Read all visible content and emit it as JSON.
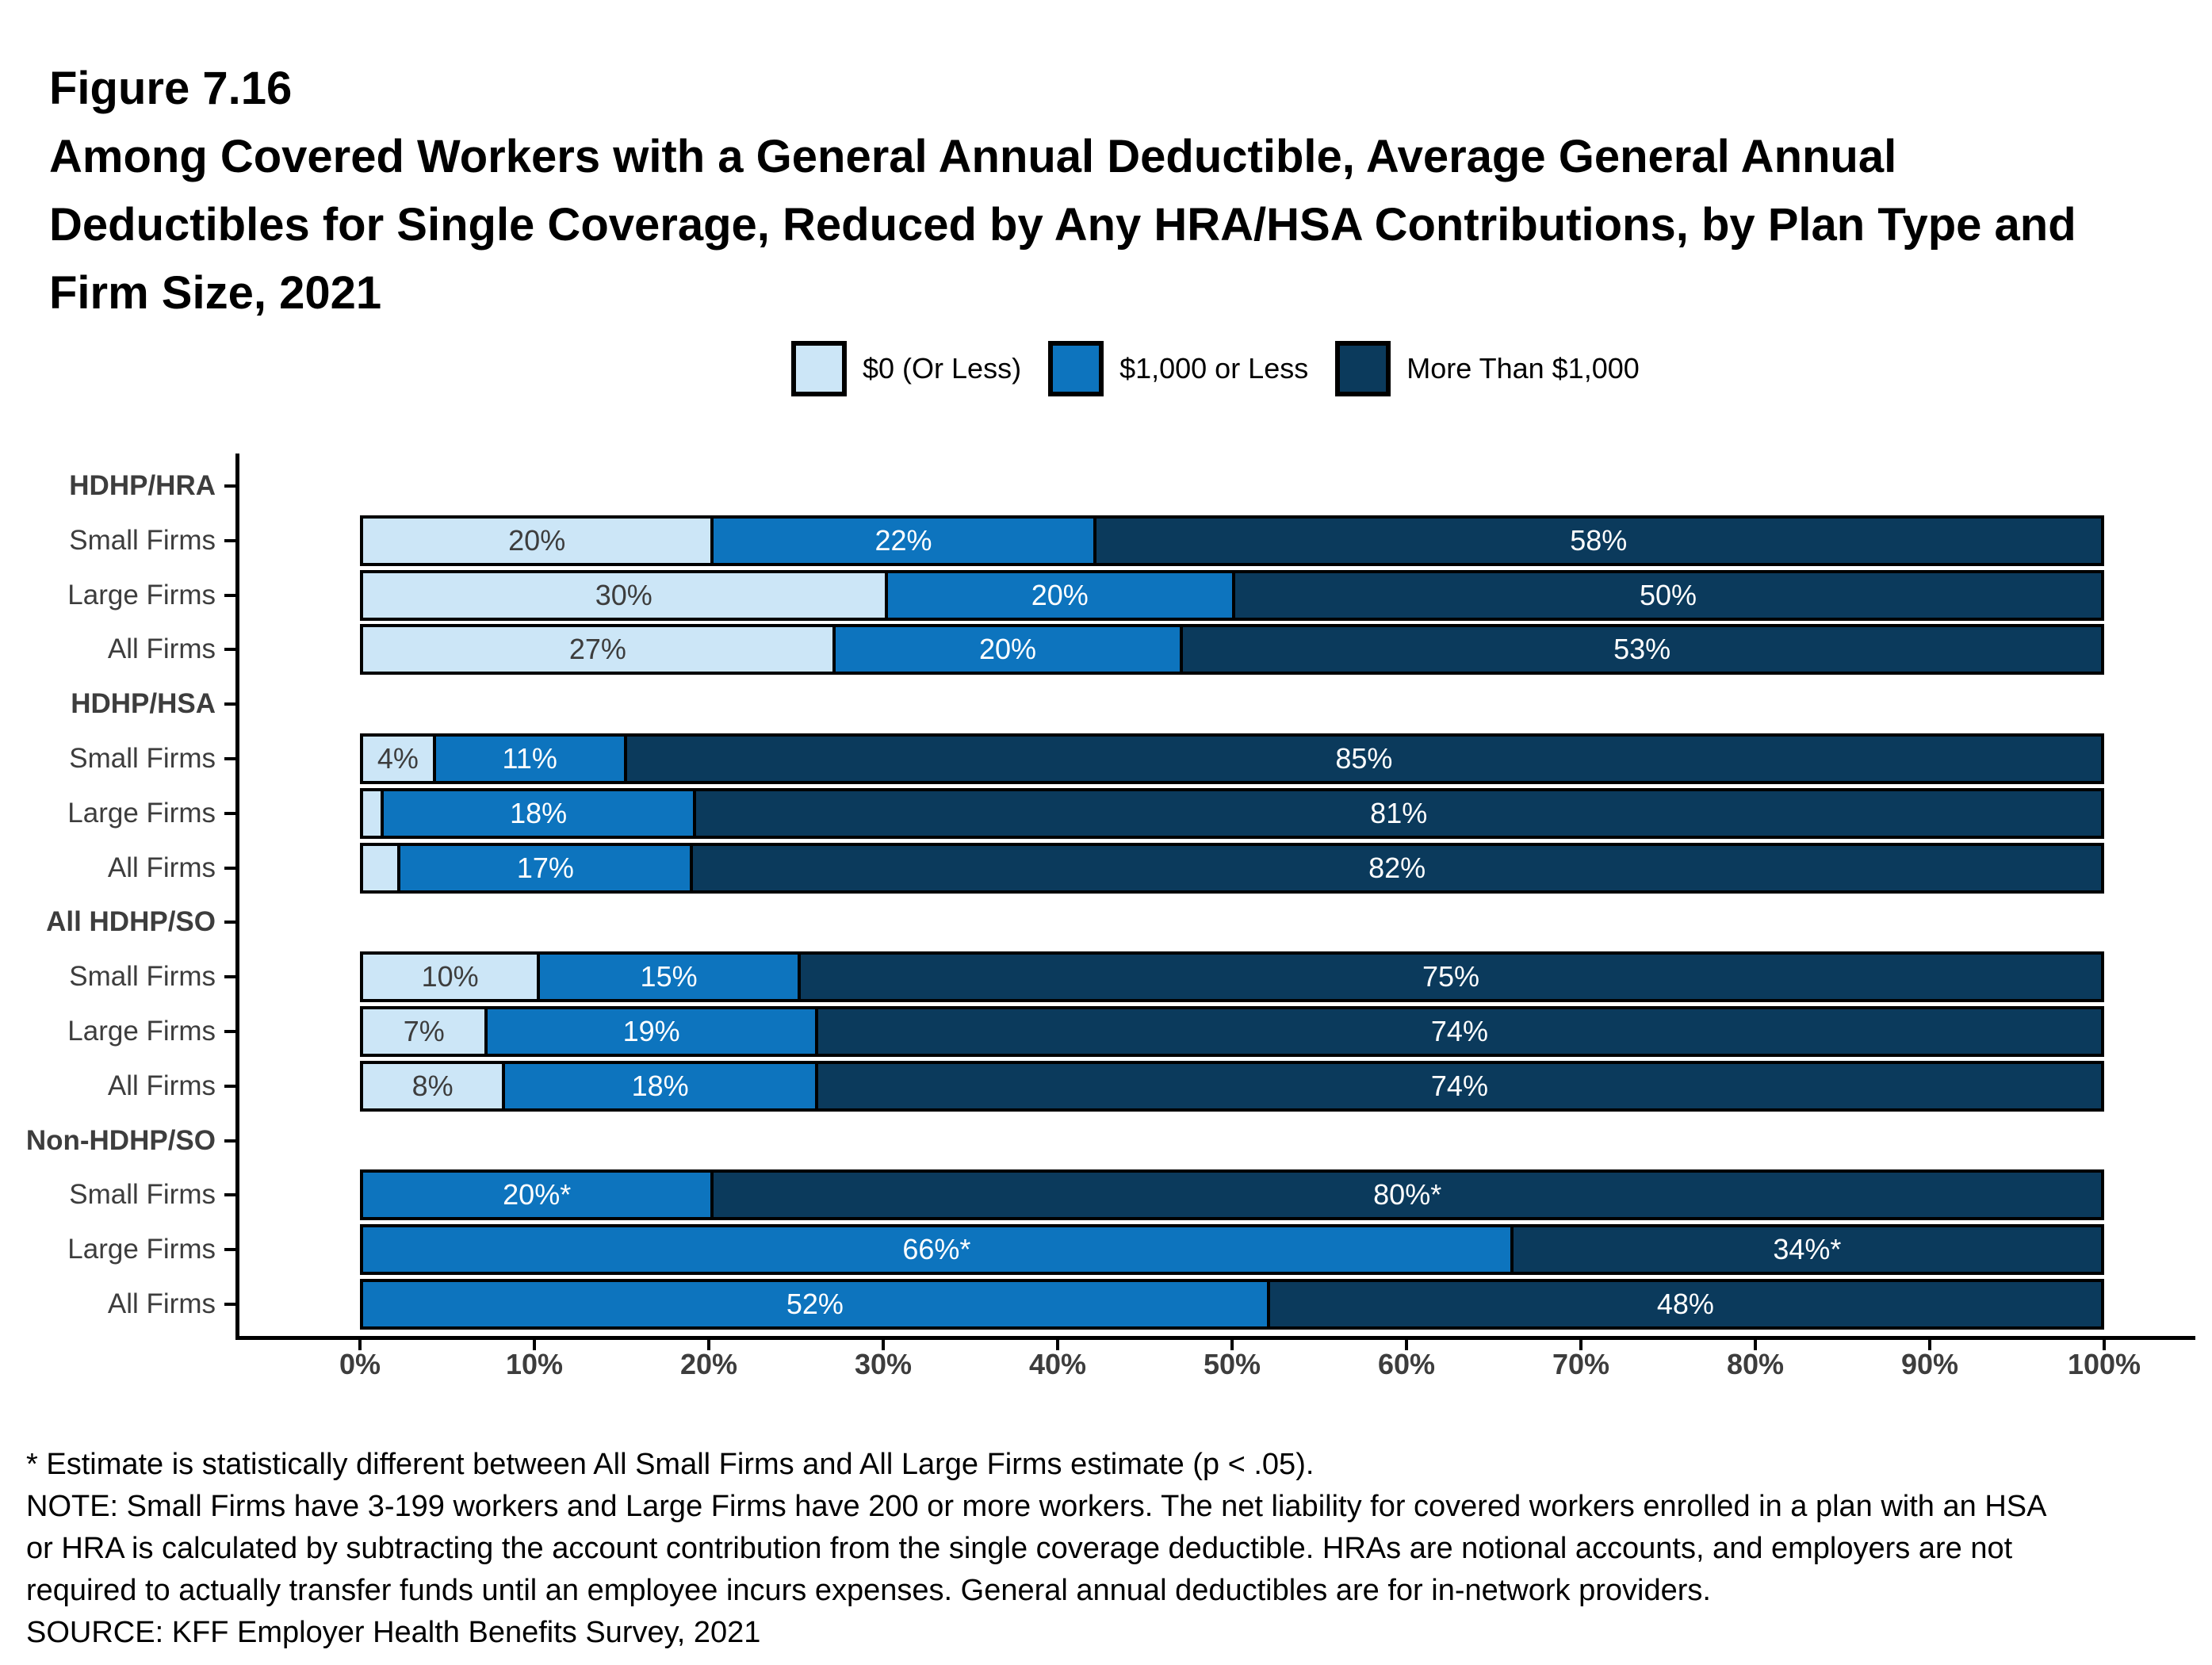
{
  "title": {
    "lines": [
      "Figure 7.16",
      "Among Covered Workers with a General Annual Deductible, Average General Annual",
      "Deductibles for Single Coverage, Reduced by Any HRA/HSA Contributions, by Plan Type and",
      "Firm Size, 2021"
    ]
  },
  "chart_data": {
    "type": "bar",
    "subtype": "horizontal-stacked",
    "series": [
      {
        "name": "$0 (Or Less)",
        "color": "#cce6f7",
        "label_color": "#3d3d3d"
      },
      {
        "name": "$1,000 or Less",
        "color": "#0d74be",
        "label_color": "#ffffff"
      },
      {
        "name": "More Than $1,000",
        "color": "#0b3a5c",
        "label_color": "#ffffff"
      }
    ],
    "xlabel": "",
    "ylabel": "",
    "x_axis": {
      "ticks": [
        "0%",
        "10%",
        "20%",
        "30%",
        "40%",
        "50%",
        "60%",
        "70%",
        "80%",
        "90%",
        "100%"
      ],
      "range": [
        0,
        100
      ]
    },
    "groups": [
      {
        "label": "HDHP/HRA",
        "rows": [
          {
            "label": "Small Firms",
            "segments": [
              {
                "s": 0,
                "v": 20,
                "t": "20%"
              },
              {
                "s": 1,
                "v": 22,
                "t": "22%"
              },
              {
                "s": 2,
                "v": 58,
                "t": "58%"
              }
            ]
          },
          {
            "label": "Large Firms",
            "segments": [
              {
                "s": 0,
                "v": 30,
                "t": "30%"
              },
              {
                "s": 1,
                "v": 20,
                "t": "20%"
              },
              {
                "s": 2,
                "v": 50,
                "t": "50%"
              }
            ]
          },
          {
            "label": "All Firms",
            "segments": [
              {
                "s": 0,
                "v": 27,
                "t": "27%"
              },
              {
                "s": 1,
                "v": 20,
                "t": "20%"
              },
              {
                "s": 2,
                "v": 53,
                "t": "53%"
              }
            ]
          }
        ]
      },
      {
        "label": "HDHP/HSA",
        "rows": [
          {
            "label": "Small Firms",
            "segments": [
              {
                "s": 0,
                "v": 4,
                "t": "4%"
              },
              {
                "s": 1,
                "v": 11,
                "t": "11%"
              },
              {
                "s": 2,
                "v": 85,
                "t": "85%"
              }
            ]
          },
          {
            "label": "Large Firms",
            "segments": [
              {
                "s": 0,
                "v": 1,
                "t": ""
              },
              {
                "s": 1,
                "v": 18,
                "t": "18%"
              },
              {
                "s": 2,
                "v": 81,
                "t": "81%"
              }
            ]
          },
          {
            "label": "All Firms",
            "segments": [
              {
                "s": 0,
                "v": 2,
                "t": ""
              },
              {
                "s": 1,
                "v": 17,
                "t": "17%"
              },
              {
                "s": 2,
                "v": 82,
                "t": "82%"
              }
            ]
          }
        ]
      },
      {
        "label": "All HDHP/SO",
        "rows": [
          {
            "label": "Small Firms",
            "segments": [
              {
                "s": 0,
                "v": 10,
                "t": "10%"
              },
              {
                "s": 1,
                "v": 15,
                "t": "15%"
              },
              {
                "s": 2,
                "v": 75,
                "t": "75%"
              }
            ]
          },
          {
            "label": "Large Firms",
            "segments": [
              {
                "s": 0,
                "v": 7,
                "t": "7%"
              },
              {
                "s": 1,
                "v": 19,
                "t": "19%"
              },
              {
                "s": 2,
                "v": 74,
                "t": "74%"
              }
            ]
          },
          {
            "label": "All Firms",
            "segments": [
              {
                "s": 0,
                "v": 8,
                "t": "8%"
              },
              {
                "s": 1,
                "v": 18,
                "t": "18%"
              },
              {
                "s": 2,
                "v": 74,
                "t": "74%"
              }
            ]
          }
        ]
      },
      {
        "label": "Non-HDHP/SO",
        "rows": [
          {
            "label": "Small Firms",
            "segments": [
              {
                "s": 1,
                "v": 20,
                "t": "20%*"
              },
              {
                "s": 2,
                "v": 80,
                "t": "80%*"
              }
            ]
          },
          {
            "label": "Large Firms",
            "segments": [
              {
                "s": 1,
                "v": 66,
                "t": "66%*"
              },
              {
                "s": 2,
                "v": 34,
                "t": "34%*"
              }
            ]
          },
          {
            "label": "All Firms",
            "segments": [
              {
                "s": 1,
                "v": 52,
                "t": "52%"
              },
              {
                "s": 2,
                "v": 48,
                "t": "48%"
              }
            ]
          }
        ]
      }
    ]
  },
  "footnotes": {
    "lines": [
      "* Estimate is statistically different between All Small Firms and All Large Firms estimate (p < .05).",
      "NOTE: Small Firms have 3-199 workers and Large Firms have 200 or more workers. The net liability for covered workers enrolled in a plan with an HSA",
      "or HRA is calculated by subtracting the account contribution from the single coverage deductible. HRAs are notional accounts, and employers are not",
      "required to actually transfer funds until an employee incurs expenses. General annual deductibles are for in-network providers.",
      "SOURCE: KFF Employer Health Benefits Survey, 2021"
    ]
  }
}
